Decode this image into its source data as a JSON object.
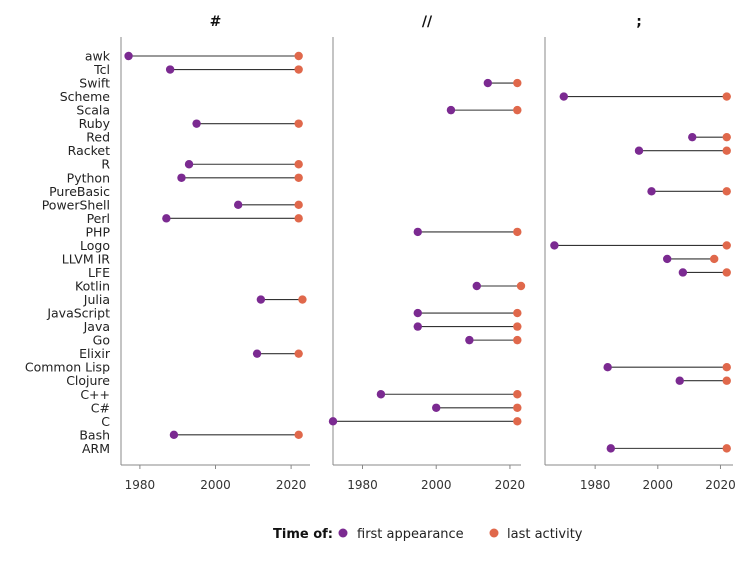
{
  "chart_data": {
    "type": "dumbbell",
    "categories": [
      "awk",
      "Tcl",
      "Swift",
      "Scheme",
      "Scala",
      "Ruby",
      "Red",
      "Racket",
      "R",
      "Python",
      "PureBasic",
      "PowerShell",
      "Perl",
      "PHP",
      "Logo",
      "LLVM IR",
      "LFE",
      "Kotlin",
      "Julia",
      "JavaScript",
      "Java",
      "Go",
      "Elixir",
      "Common Lisp",
      "Clojure",
      "C++",
      "C#",
      "C",
      "Bash",
      "ARM"
    ],
    "legend": {
      "title": "Time of:",
      "entries": [
        {
          "key": "first",
          "label": "first appearance",
          "color": "#7b2a91"
        },
        {
          "key": "last",
          "label": "last activity",
          "color": "#e0684b"
        }
      ]
    },
    "panels": [
      {
        "title": "#",
        "xlim": [
          1975,
          2025
        ],
        "ticks": [
          1980,
          2000,
          2020
        ],
        "tick_labels": [
          "1980",
          "2000",
          "2020"
        ],
        "items": [
          {
            "category": "awk",
            "first": 1977,
            "last": 2022
          },
          {
            "category": "Tcl",
            "first": 1988,
            "last": 2022
          },
          {
            "category": "Ruby",
            "first": 1995,
            "last": 2022
          },
          {
            "category": "R",
            "first": 1993,
            "last": 2022
          },
          {
            "category": "Python",
            "first": 1991,
            "last": 2022
          },
          {
            "category": "PowerShell",
            "first": 2006,
            "last": 2022
          },
          {
            "category": "Perl",
            "first": 1987,
            "last": 2022
          },
          {
            "category": "Julia",
            "first": 2012,
            "last": 2023
          },
          {
            "category": "Elixir",
            "first": 2011,
            "last": 2022
          },
          {
            "category": "Bash",
            "first": 1989,
            "last": 2022
          }
        ]
      },
      {
        "title": "//",
        "xlim": [
          1972,
          2023
        ],
        "ticks": [
          1980,
          2000,
          2020
        ],
        "tick_labels": [
          "1980",
          "2000",
          "2020"
        ],
        "items": [
          {
            "category": "Swift",
            "first": 2014,
            "last": 2022
          },
          {
            "category": "Scala",
            "first": 2004,
            "last": 2022
          },
          {
            "category": "PHP",
            "first": 1995,
            "last": 2022
          },
          {
            "category": "Kotlin",
            "first": 2011,
            "last": 2023
          },
          {
            "category": "JavaScript",
            "first": 1995,
            "last": 2022
          },
          {
            "category": "Java",
            "first": 1995,
            "last": 2022
          },
          {
            "category": "Go",
            "first": 2009,
            "last": 2022
          },
          {
            "category": "C++",
            "first": 1985,
            "last": 2022
          },
          {
            "category": "C#",
            "first": 2000,
            "last": 2022
          },
          {
            "category": "C",
            "first": 1972,
            "last": 2022
          }
        ]
      },
      {
        "title": ";",
        "xlim": [
          1964,
          2024
        ],
        "ticks": [
          1980,
          2000,
          2020
        ],
        "tick_labels": [
          "1980",
          "2000",
          "2020"
        ],
        "items": [
          {
            "category": "Scheme",
            "first": 1970,
            "last": 2022
          },
          {
            "category": "Red",
            "first": 2011,
            "last": 2022
          },
          {
            "category": "Racket",
            "first": 1994,
            "last": 2022
          },
          {
            "category": "PureBasic",
            "first": 1998,
            "last": 2022
          },
          {
            "category": "Logo",
            "first": 1967,
            "last": 2022
          },
          {
            "category": "LLVM IR",
            "first": 2003,
            "last": 2018
          },
          {
            "category": "LFE",
            "first": 2008,
            "last": 2022
          },
          {
            "category": "Common Lisp",
            "first": 1984,
            "last": 2022
          },
          {
            "category": "Clojure",
            "first": 2007,
            "last": 2022
          },
          {
            "category": "ARM",
            "first": 1985,
            "last": 2022
          }
        ]
      }
    ]
  }
}
